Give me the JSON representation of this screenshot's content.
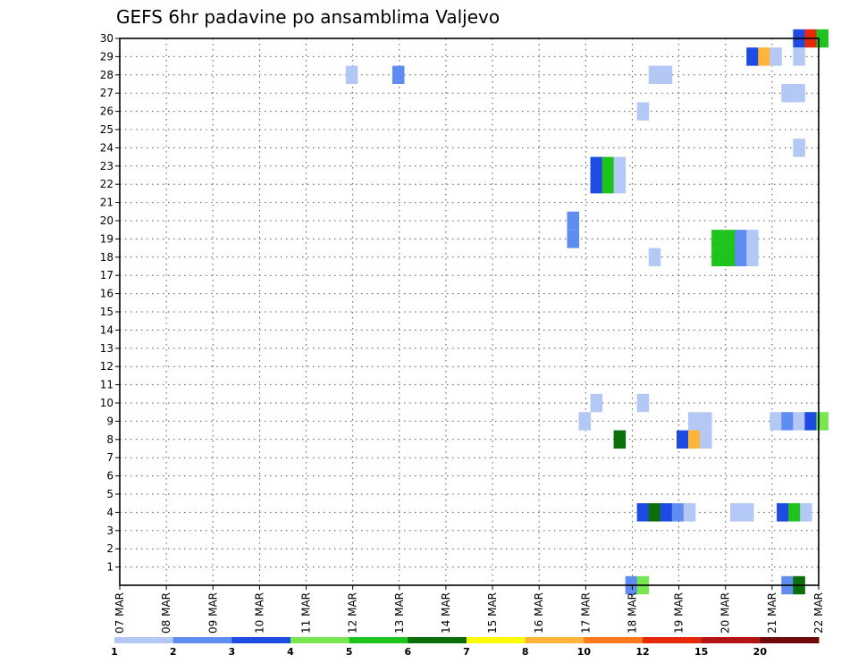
{
  "chart_data": {
    "type": "heatmap",
    "title": "GEFS 6hr padavine po ansamblima Valjevo",
    "xlabel": "",
    "ylabel": "",
    "x_ticks": [
      "07 MAR",
      "08 MAR",
      "09 MAR",
      "10 MAR",
      "11 MAR",
      "12 MAR",
      "13 MAR",
      "14 MAR",
      "15 MAR",
      "16 MAR",
      "17 MAR",
      "18 MAR",
      "19 MAR",
      "20 MAR",
      "21 MAR",
      "22 MAR"
    ],
    "x_range_days": [
      0,
      15
    ],
    "time_step_hours": 6,
    "y_ticks": [
      1,
      2,
      3,
      4,
      5,
      6,
      7,
      8,
      9,
      10,
      11,
      12,
      13,
      14,
      15,
      16,
      17,
      18,
      19,
      20,
      21,
      22,
      23,
      24,
      25,
      26,
      27,
      28,
      29,
      30
    ],
    "y_range": [
      0,
      30
    ],
    "grid": true,
    "legend_levels": [
      "1",
      "2",
      "3",
      "4",
      "5",
      "6",
      "7",
      "8",
      "10",
      "12",
      "15",
      "20"
    ],
    "legend_colors": [
      "#b4c8f5",
      "#5f8cf0",
      "#1e4be1",
      "#78e650",
      "#1ec31e",
      "#0a6e0a",
      "#ffff00",
      "#ffb43c",
      "#ff781e",
      "#e6280a",
      "#b41414",
      "#6e0a0a"
    ],
    "cells": [
      {
        "m": 30,
        "d": 14.45,
        "v": 3
      },
      {
        "m": 30,
        "d": 14.7,
        "v": 10
      },
      {
        "m": 30,
        "d": 14.95,
        "v": 5
      },
      {
        "m": 29,
        "d": 13.45,
        "v": 3
      },
      {
        "m": 29,
        "d": 13.7,
        "v": 8
      },
      {
        "m": 29,
        "d": 13.95,
        "v": 1
      },
      {
        "m": 29,
        "d": 14.45,
        "v": 1
      },
      {
        "m": 28,
        "d": 4.85,
        "v": 1
      },
      {
        "m": 28,
        "d": 5.85,
        "v": 2
      },
      {
        "m": 28,
        "d": 11.35,
        "v": 1
      },
      {
        "m": 28,
        "d": 11.6,
        "v": 1
      },
      {
        "m": 27,
        "d": 14.2,
        "v": 1
      },
      {
        "m": 27,
        "d": 14.45,
        "v": 1
      },
      {
        "m": 26,
        "d": 11.1,
        "v": 1
      },
      {
        "m": 24,
        "d": 14.45,
        "v": 1
      },
      {
        "m": 23,
        "d": 10.1,
        "v": 3
      },
      {
        "m": 23,
        "d": 10.35,
        "v": 5
      },
      {
        "m": 23,
        "d": 10.6,
        "v": 1
      },
      {
        "m": 22,
        "d": 10.1,
        "v": 3
      },
      {
        "m": 22,
        "d": 10.35,
        "v": 5
      },
      {
        "m": 22,
        "d": 10.6,
        "v": 1
      },
      {
        "m": 20,
        "d": 9.6,
        "v": 2
      },
      {
        "m": 19,
        "d": 9.6,
        "v": 2
      },
      {
        "m": 19,
        "d": 12.7,
        "v": 5
      },
      {
        "m": 19,
        "d": 12.95,
        "v": 5
      },
      {
        "m": 19,
        "d": 13.2,
        "v": 2
      },
      {
        "m": 19,
        "d": 13.45,
        "v": 1
      },
      {
        "m": 18,
        "d": 11.35,
        "v": 1
      },
      {
        "m": 18,
        "d": 12.7,
        "v": 5
      },
      {
        "m": 18,
        "d": 12.95,
        "v": 5
      },
      {
        "m": 18,
        "d": 13.2,
        "v": 2
      },
      {
        "m": 18,
        "d": 13.45,
        "v": 1
      },
      {
        "m": 10,
        "d": 10.1,
        "v": 1
      },
      {
        "m": 10,
        "d": 11.1,
        "v": 1
      },
      {
        "m": 9,
        "d": 9.85,
        "v": 1
      },
      {
        "m": 9,
        "d": 12.2,
        "v": 1
      },
      {
        "m": 9,
        "d": 12.45,
        "v": 1
      },
      {
        "m": 9,
        "d": 13.95,
        "v": 1
      },
      {
        "m": 9,
        "d": 14.2,
        "v": 2
      },
      {
        "m": 9,
        "d": 14.45,
        "v": 1
      },
      {
        "m": 9,
        "d": 14.7,
        "v": 3
      },
      {
        "m": 9,
        "d": 14.95,
        "v": 4
      },
      {
        "m": 8,
        "d": 10.6,
        "v": 6
      },
      {
        "m": 8,
        "d": 11.95,
        "v": 3
      },
      {
        "m": 8,
        "d": 12.2,
        "v": 8
      },
      {
        "m": 8,
        "d": 12.45,
        "v": 1
      },
      {
        "m": 4,
        "d": 11.1,
        "v": 3
      },
      {
        "m": 4,
        "d": 11.35,
        "v": 6
      },
      {
        "m": 4,
        "d": 11.6,
        "v": 3
      },
      {
        "m": 4,
        "d": 11.85,
        "v": 2
      },
      {
        "m": 4,
        "d": 12.1,
        "v": 1
      },
      {
        "m": 4,
        "d": 13.1,
        "v": 1
      },
      {
        "m": 4,
        "d": 13.35,
        "v": 1
      },
      {
        "m": 4,
        "d": 14.1,
        "v": 3
      },
      {
        "m": 4,
        "d": 14.35,
        "v": 5
      },
      {
        "m": 4,
        "d": 14.6,
        "v": 1
      },
      {
        "m": 0,
        "d": 10.85,
        "v": 2
      },
      {
        "m": 0,
        "d": 11.1,
        "v": 4
      },
      {
        "m": 0,
        "d": 14.2,
        "v": 2
      },
      {
        "m": 0,
        "d": 14.45,
        "v": 6
      }
    ]
  }
}
